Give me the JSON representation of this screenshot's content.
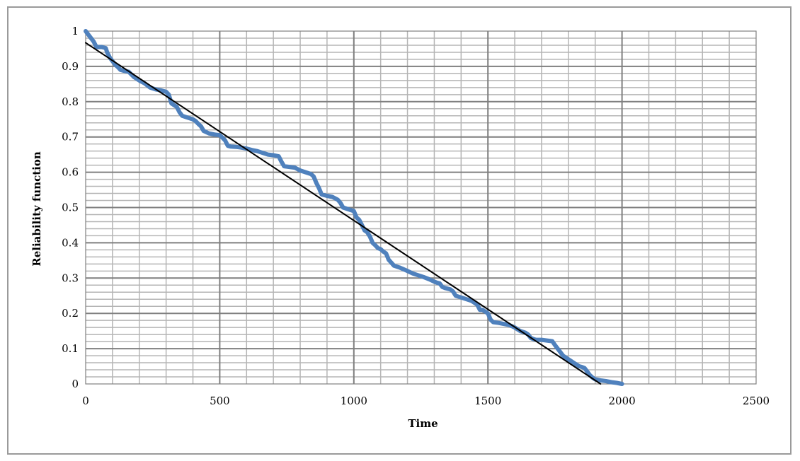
{
  "chart_data": {
    "type": "line",
    "title": "",
    "xlabel": "Time",
    "ylabel": "Reliability function",
    "xlim": [
      0,
      2500
    ],
    "ylim": [
      0,
      1
    ],
    "x_ticks": [
      0,
      500,
      1000,
      1500,
      2000,
      2500
    ],
    "y_ticks": [
      0,
      0.1,
      0.2,
      0.3,
      0.4,
      0.5,
      0.6,
      0.7,
      0.8,
      0.9,
      1
    ],
    "y_tick_labels": [
      "0",
      "0.1",
      "0.2",
      "0.3",
      "0.4",
      "0.5",
      "0.6",
      "0.7",
      "0.8",
      "0.9",
      "1"
    ],
    "grid": true,
    "legend": "none",
    "series": [
      {
        "color": "#4f81bd",
        "x": [
          0,
          10,
          20,
          30,
          40,
          50,
          60,
          75,
          80,
          90,
          100,
          110,
          120,
          130,
          140,
          160,
          180,
          200,
          220,
          240,
          260,
          280,
          300,
          310,
          320,
          330,
          340,
          350,
          360,
          380,
          400,
          410,
          420,
          430,
          440,
          460,
          480,
          500,
          510,
          520,
          530,
          540,
          560,
          580,
          600,
          620,
          640,
          660,
          680,
          700,
          720,
          730,
          740,
          760,
          780,
          800,
          820,
          840,
          850,
          860,
          870,
          880,
          900,
          920,
          940,
          950,
          960,
          980,
          1000,
          1010,
          1020,
          1030,
          1040,
          1050,
          1060,
          1070,
          1080,
          1090,
          1100,
          1110,
          1120,
          1130,
          1150,
          1170,
          1200,
          1220,
          1240,
          1260,
          1280,
          1300,
          1310,
          1320,
          1330,
          1340,
          1350,
          1360,
          1370,
          1380,
          1400,
          1420,
          1440,
          1460,
          1470,
          1480,
          1490,
          1500,
          1510,
          1520,
          1540,
          1560,
          1580,
          1600,
          1620,
          1640,
          1650,
          1660,
          1670,
          1680,
          1690,
          1700,
          1720,
          1740,
          1750,
          1760,
          1770,
          1780,
          1790,
          1800,
          1820,
          1830,
          1840,
          1850,
          1860,
          1870,
          1880,
          1890,
          1900,
          1920,
          1940,
          1960,
          1980,
          2000
        ],
        "y": [
          1.0,
          0.99,
          0.98,
          0.97,
          0.955,
          0.955,
          0.955,
          0.952,
          0.94,
          0.925,
          0.915,
          0.905,
          0.898,
          0.89,
          0.888,
          0.885,
          0.87,
          0.86,
          0.852,
          0.84,
          0.835,
          0.832,
          0.828,
          0.82,
          0.795,
          0.79,
          0.785,
          0.77,
          0.76,
          0.755,
          0.75,
          0.745,
          0.737,
          0.73,
          0.717,
          0.71,
          0.707,
          0.705,
          0.698,
          0.69,
          0.675,
          0.673,
          0.672,
          0.67,
          0.667,
          0.663,
          0.66,
          0.655,
          0.65,
          0.648,
          0.645,
          0.63,
          0.617,
          0.615,
          0.613,
          0.605,
          0.6,
          0.595,
          0.588,
          0.57,
          0.555,
          0.537,
          0.533,
          0.53,
          0.522,
          0.513,
          0.5,
          0.495,
          0.49,
          0.472,
          0.465,
          0.45,
          0.435,
          0.43,
          0.418,
          0.4,
          0.393,
          0.385,
          0.382,
          0.375,
          0.37,
          0.352,
          0.335,
          0.33,
          0.32,
          0.313,
          0.308,
          0.303,
          0.297,
          0.29,
          0.287,
          0.285,
          0.275,
          0.272,
          0.27,
          0.268,
          0.262,
          0.25,
          0.245,
          0.24,
          0.235,
          0.225,
          0.21,
          0.21,
          0.205,
          0.2,
          0.182,
          0.175,
          0.173,
          0.17,
          0.167,
          0.16,
          0.15,
          0.145,
          0.14,
          0.13,
          0.127,
          0.125,
          0.125,
          0.125,
          0.123,
          0.121,
          0.11,
          0.1,
          0.09,
          0.08,
          0.075,
          0.07,
          0.06,
          0.055,
          0.05,
          0.048,
          0.045,
          0.035,
          0.025,
          0.018,
          0.013,
          0.01,
          0.008,
          0.005,
          0.003,
          0.0
        ]
      },
      {
        "color": "#000000",
        "x": [
          0,
          1920
        ],
        "y": [
          0.967,
          0.0
        ]
      }
    ]
  }
}
